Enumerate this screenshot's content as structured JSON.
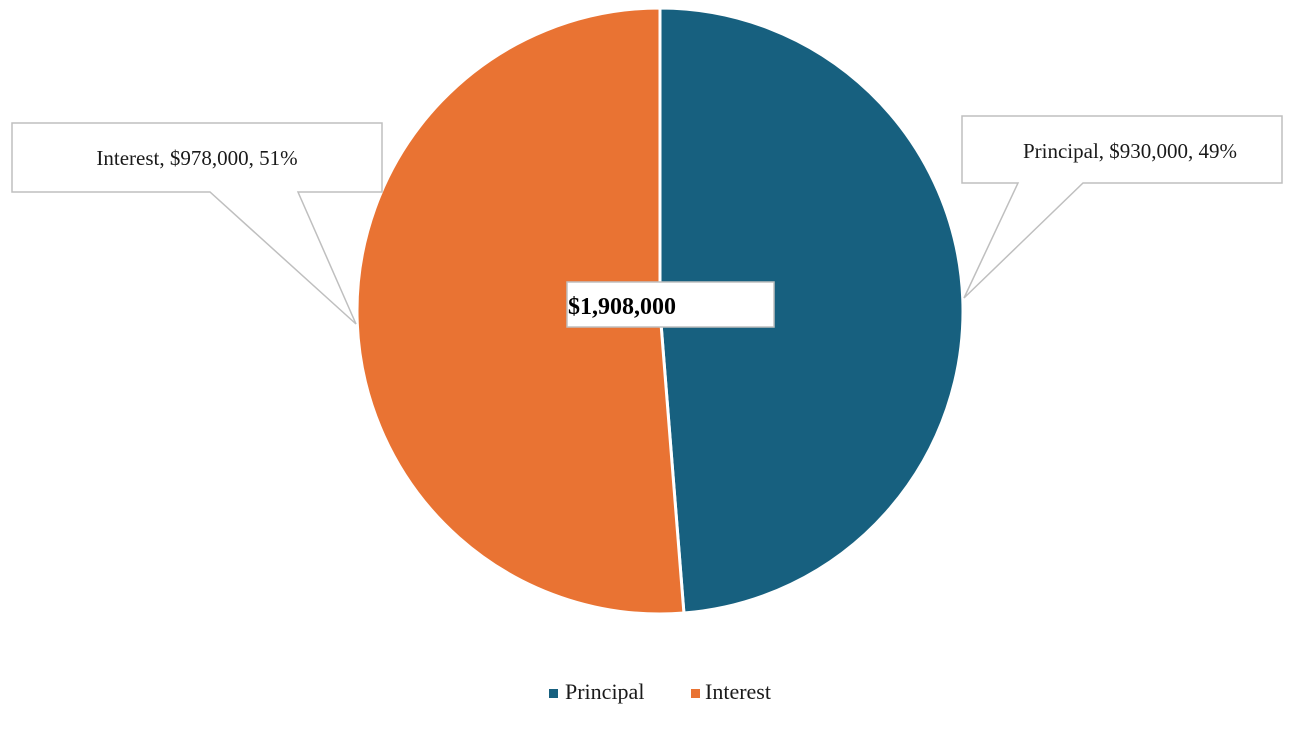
{
  "chart_data": {
    "type": "pie",
    "title": "",
    "slices": [
      {
        "label": "Principal",
        "value": 930000,
        "value_text": "$930,000",
        "percent_text": "49%",
        "color": "#17607f"
      },
      {
        "label": "Interest",
        "value": 978000,
        "value_text": "$978,000",
        "percent_text": "51%",
        "color": "#e97333"
      }
    ],
    "data_labels": [
      "Principal, $930,000, 49%",
      "Interest, $978,000, 51%"
    ],
    "center_label": "$1,908,000",
    "legend": {
      "position": "bottom",
      "entries": [
        "Principal",
        "Interest"
      ]
    }
  }
}
